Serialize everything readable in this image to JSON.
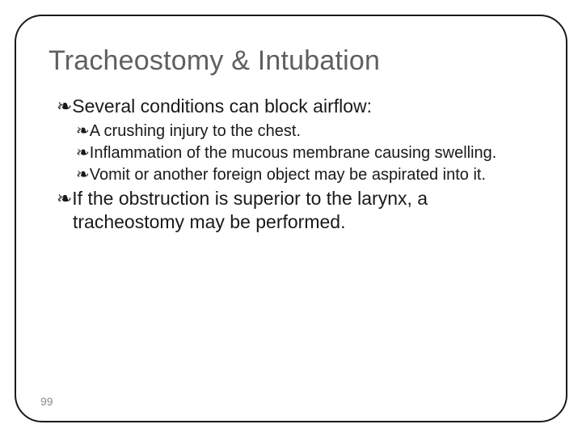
{
  "slide": {
    "title": "Tracheostomy & Intubation",
    "title_color": "#5f5f5f",
    "title_fontsize": 34,
    "body_color": "#1a1a1a",
    "lvl1_fontsize": 23,
    "lvl2_fontsize": 20,
    "bullet_glyph": "❧",
    "border_color": "#1a1a1a",
    "border_radius": 34,
    "background": "#ffffff",
    "page_number": "99",
    "page_number_color": "#8a8a8a",
    "items": [
      {
        "level": 1,
        "text": "Several conditions can block airflow:"
      },
      {
        "level": 2,
        "text": "A crushing injury to the chest."
      },
      {
        "level": 2,
        "text": "Inflammation of the mucous membrane causing swelling."
      },
      {
        "level": 2,
        "text": "Vomit or another foreign object may be aspirated into it."
      },
      {
        "level": 1,
        "text": "If the obstruction is superior to the larynx, a tracheostomy may be performed."
      }
    ]
  }
}
